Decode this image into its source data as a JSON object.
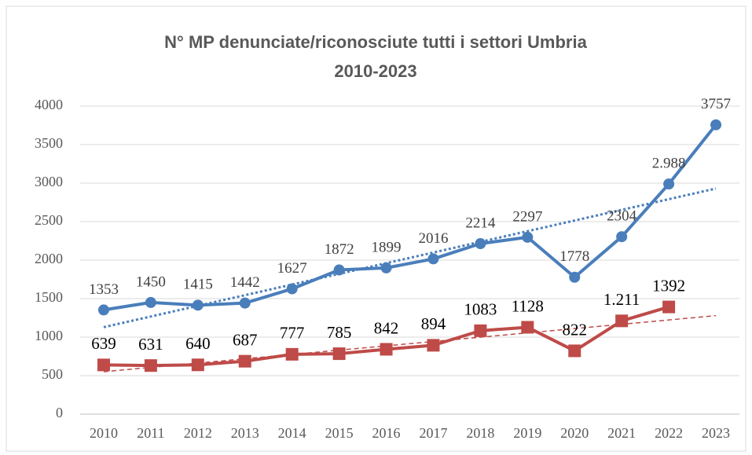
{
  "chart_data": {
    "type": "line",
    "title": [
      "N° MP denunciate/riconosciute tutti i settori Umbria",
      "2010-2023"
    ],
    "categories": [
      "2010",
      "2011",
      "2012",
      "2013",
      "2014",
      "2015",
      "2016",
      "2017",
      "2018",
      "2019",
      "2020",
      "2021",
      "2022",
      "2023"
    ],
    "series": [
      {
        "color": "#4a7ebb",
        "marker": "circle",
        "trendline": "dotted",
        "values": [
          1353,
          1450,
          1415,
          1442,
          1627,
          1872,
          1899,
          2016,
          2214,
          2297,
          1778,
          2304,
          2988,
          3757
        ],
        "value_labels": [
          "1353",
          "1450",
          "1415",
          "1442",
          "1627",
          "1872",
          "1899",
          "2016",
          "2214",
          "2297",
          "1778",
          "2304",
          "2.988",
          "3757"
        ]
      },
      {
        "color": "#be4b48",
        "marker": "square",
        "trendline": "dashed",
        "values": [
          639,
          631,
          640,
          687,
          777,
          785,
          842,
          894,
          1083,
          1128,
          822,
          1211,
          1392,
          null
        ],
        "value_labels": [
          "639",
          "631",
          "640",
          "687",
          "777",
          "785",
          "842",
          "894",
          "1083",
          "1128",
          "822",
          "1.211",
          "1392",
          null
        ]
      }
    ],
    "ylim": [
      0,
      4000
    ],
    "yticks": [
      0,
      500,
      1000,
      1500,
      2000,
      2500,
      3000,
      3500,
      4000
    ],
    "grid": true
  }
}
